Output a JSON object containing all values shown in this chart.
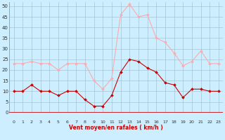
{
  "hours": [
    0,
    1,
    2,
    3,
    4,
    5,
    6,
    7,
    8,
    9,
    10,
    11,
    12,
    13,
    14,
    15,
    16,
    17,
    18,
    19,
    20,
    21,
    22,
    23
  ],
  "wind_mean": [
    10,
    10,
    13,
    10,
    10,
    8,
    10,
    10,
    6,
    3,
    3,
    8,
    19,
    25,
    24,
    21,
    19,
    14,
    13,
    7,
    11,
    11,
    10,
    10
  ],
  "wind_gust": [
    23,
    23,
    24,
    23,
    23,
    20,
    23,
    23,
    23,
    15,
    11,
    16,
    46,
    51,
    45,
    46,
    35,
    33,
    28,
    22,
    24,
    29,
    23,
    23
  ],
  "mean_color": "#cc0000",
  "gust_color": "#ffaaaa",
  "bg_color": "#cceeff",
  "grid_color": "#99bbcc",
  "xlabel": "Vent moyen/en rafales ( km/h )",
  "xlabel_color": "#cc0000",
  "ytick_labels": [
    "0",
    "5",
    "10",
    "15",
    "20",
    "25",
    "30",
    "35",
    "40",
    "45",
    "50"
  ],
  "ytick_vals": [
    0,
    5,
    10,
    15,
    20,
    25,
    30,
    35,
    40,
    45,
    50
  ],
  "ylim": [
    0,
    52
  ],
  "xlim": [
    -0.5,
    23.5
  ],
  "spine_color": "#cc0000",
  "tick_color": "#cc0000"
}
